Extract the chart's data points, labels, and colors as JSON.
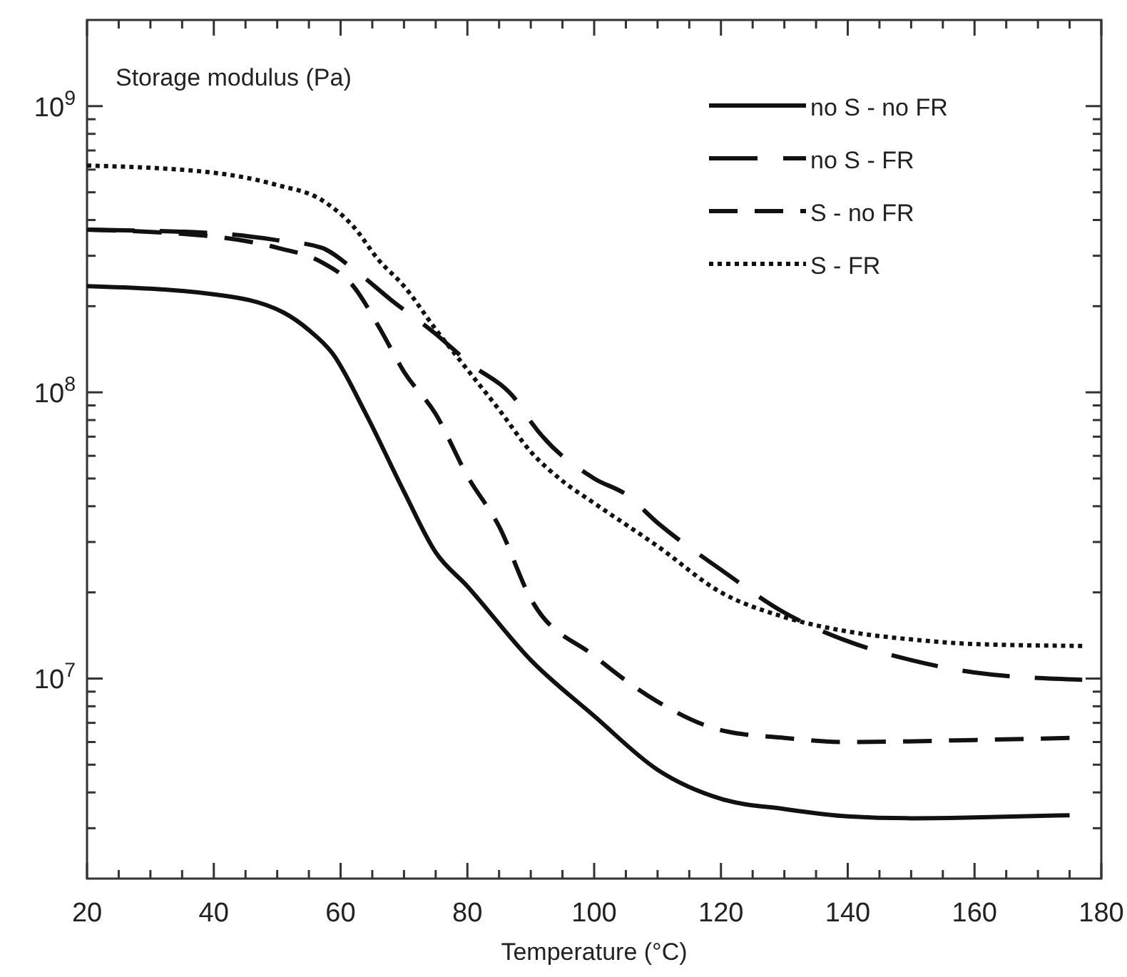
{
  "chart_data": {
    "type": "line",
    "xlabel": "Temperature (°C)",
    "ylabel": "Storage modulus (Pa)",
    "log": "y",
    "legend": "top right",
    "grid": false,
    "marker": "none",
    "xlim": [
      20,
      180
    ],
    "ylim": [
      2000000,
      2000000000
    ],
    "xticks": [
      20,
      {
        "value": 25,
        "label": null
      },
      {
        "value": 30,
        "label": null
      },
      {
        "value": 35,
        "label": null
      },
      40,
      {
        "value": 45,
        "label": null
      },
      {
        "value": 50,
        "label": null
      },
      {
        "value": 55,
        "label": null
      },
      60,
      {
        "value": 65,
        "label": null
      },
      {
        "value": 70,
        "label": null
      },
      {
        "value": 75,
        "label": null
      },
      80,
      {
        "value": 85,
        "label": null
      },
      {
        "value": 90,
        "label": null
      },
      {
        "value": 95,
        "label": null
      },
      100,
      {
        "value": 105,
        "label": null
      },
      {
        "value": 110,
        "label": null
      },
      {
        "value": 115,
        "label": null
      },
      120,
      {
        "value": 125,
        "label": null
      },
      {
        "value": 130,
        "label": null
      },
      {
        "value": 135,
        "label": null
      },
      140,
      {
        "value": 145,
        "label": null
      },
      {
        "value": 150,
        "label": null
      },
      {
        "value": 155,
        "label": null
      },
      160,
      {
        "value": 165,
        "label": null
      },
      {
        "value": 170,
        "label": null
      },
      {
        "value": 175,
        "label": null
      },
      180
    ],
    "yticks": [
      {
        "value": 3000000,
        "label": null
      },
      {
        "value": 4000000,
        "label": null
      },
      {
        "value": 5000000,
        "label": null
      },
      {
        "value": 6000000,
        "label": null
      },
      {
        "value": 7000000,
        "label": null
      },
      {
        "value": 8000000,
        "label": null
      },
      {
        "value": 9000000,
        "label": null
      },
      {
        "value": 10000000,
        "label": "10$^{7}$"
      },
      {
        "value": 20000000,
        "label": null
      },
      {
        "value": 30000000,
        "label": null
      },
      {
        "value": 40000000,
        "label": null
      },
      {
        "value": 50000000,
        "label": null
      },
      {
        "value": 60000000,
        "label": null
      },
      {
        "value": 70000000,
        "label": null
      },
      {
        "value": 80000000,
        "label": null
      },
      {
        "value": 90000000,
        "label": null
      },
      {
        "value": 100000000,
        "label": "10$^{8}$"
      },
      {
        "value": 200000000,
        "label": null
      },
      {
        "value": 300000000,
        "label": null
      },
      {
        "value": 400000000,
        "label": null
      },
      {
        "value": 500000000,
        "label": null
      },
      {
        "value": 600000000,
        "label": null
      },
      {
        "value": 700000000,
        "label": null
      },
      {
        "value": 800000000,
        "label": null
      },
      {
        "value": 900000000,
        "label": null
      },
      {
        "value": 1000000000,
        "label": "10$^{9}$"
      }
    ],
    "series": [
      {
        "name": "no S - no FR",
        "color": "#111111",
        "line_style": "solid",
        "x": [
          20,
          40,
          51,
          55,
          58.7,
          64,
          70,
          75,
          80,
          90,
          100,
          110,
          120,
          130,
          140,
          150,
          160,
          175
        ],
        "values": [
          235000000,
          220000000,
          190000000,
          165000000,
          137000000,
          84000000,
          45000000,
          27600000,
          21000000,
          11600000,
          7400000,
          4800000,
          3800000,
          3500000,
          3300000,
          3250000,
          3270000,
          3330000
        ]
      },
      {
        "name": "no S - FR",
        "color": "#111111",
        "line_style": "longdash",
        "x": [
          20,
          40,
          50,
          57,
          62,
          68,
          75,
          80,
          88,
          90,
          100,
          105,
          110,
          120,
          130,
          140,
          150,
          160,
          177
        ],
        "values": [
          370000000,
          360000000,
          340000000,
          320000000,
          270000000,
          210000000,
          160000000,
          128000000,
          92000000,
          79000000,
          50000000,
          44000000,
          35000000,
          24000000,
          17000000,
          13500000,
          11600000,
          10500000,
          9900000
        ]
      },
      {
        "name": "S - no FR",
        "color": "#111111",
        "line_style": "dashed",
        "x": [
          20,
          40,
          50,
          57,
          62,
          66,
          70,
          75,
          80,
          85,
          90,
          100,
          110,
          120,
          130,
          140,
          160,
          175
        ],
        "values": [
          370000000,
          350000000,
          320000000,
          285000000,
          235000000,
          170000000,
          118000000,
          84000000,
          51000000,
          34000000,
          19000000,
          12000000,
          8300000,
          6600000,
          6200000,
          6000000,
          6100000,
          6200000
        ]
      },
      {
        "name": "S - FR",
        "color": "#111111",
        "line_style": "dotted",
        "x": [
          20,
          40,
          50,
          57,
          62,
          66,
          70,
          75,
          80,
          85,
          90,
          95,
          100,
          110,
          120,
          130,
          140,
          150,
          160,
          177
        ],
        "values": [
          620000000,
          585000000,
          530000000,
          470000000,
          380000000,
          290000000,
          235000000,
          166000000,
          120000000,
          87000000,
          62000000,
          49000000,
          41000000,
          29000000,
          20000000,
          16400000,
          14600000,
          13700000,
          13200000,
          13000000
        ]
      }
    ]
  }
}
